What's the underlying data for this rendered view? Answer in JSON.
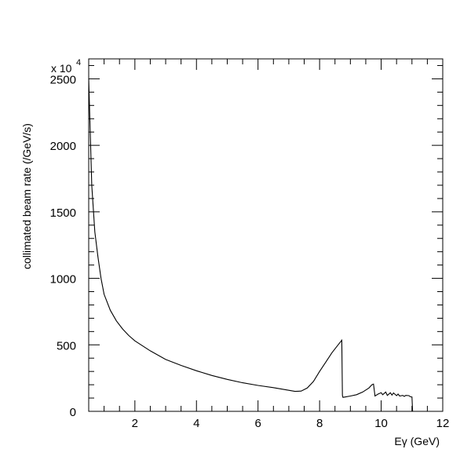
{
  "chart_data": {
    "type": "line",
    "title": "",
    "xlabel": "Eγ (GeV)",
    "ylabel": "collimated beam rate (/GeV/s)",
    "y_multiplier_base": "x 10",
    "y_multiplier_exponent": "4",
    "xlim": [
      0.5,
      12
    ],
    "ylim": [
      0,
      2650
    ],
    "x_ticks": [
      2,
      4,
      6,
      8,
      10,
      12
    ],
    "x_tick_labels": [
      "2",
      "4",
      "6",
      "8",
      "10",
      "12"
    ],
    "x_minor_step": 0.5,
    "y_ticks": [
      0,
      500,
      1000,
      1500,
      2000,
      2500
    ],
    "y_tick_labels": [
      "0",
      "500",
      "1000",
      "1500",
      "2000",
      "2500"
    ],
    "y_minor_step": 100,
    "grid": false,
    "legend": "none",
    "colors": {
      "line": "#000000",
      "axes": "#000000",
      "background": "#ffffff"
    },
    "series": [
      {
        "x": [
          0.5,
          0.6,
          0.7,
          0.8,
          0.9,
          1.0,
          1.2,
          1.4,
          1.6,
          1.8,
          2.0,
          2.5,
          3.0,
          3.5,
          4.0,
          4.5,
          5.0,
          5.5,
          6.0,
          6.5,
          7.0,
          7.2,
          7.4,
          7.6,
          7.8,
          8.0,
          8.2,
          8.4,
          8.6,
          8.72,
          8.74,
          8.76,
          9.0,
          9.2,
          9.4,
          9.6,
          9.7,
          9.75,
          9.8,
          9.9,
          10.0,
          10.05,
          10.15,
          10.2,
          10.3,
          10.35,
          10.4,
          10.5,
          10.55,
          10.6,
          10.7,
          10.75,
          10.8,
          10.9,
          10.95,
          11.0,
          11.02
        ],
        "y": [
          2500,
          1700,
          1350,
          1160,
          1000,
          880,
          760,
          680,
          620,
          570,
          530,
          455,
          390,
          345,
          305,
          270,
          240,
          215,
          195,
          178,
          158,
          150,
          152,
          175,
          225,
          300,
          370,
          440,
          500,
          535,
          120,
          105,
          115,
          125,
          145,
          175,
          200,
          205,
          115,
          130,
          140,
          125,
          145,
          120,
          140,
          122,
          138,
          118,
          130,
          115,
          120,
          112,
          120,
          118,
          110,
          108,
          0
        ]
      }
    ]
  }
}
